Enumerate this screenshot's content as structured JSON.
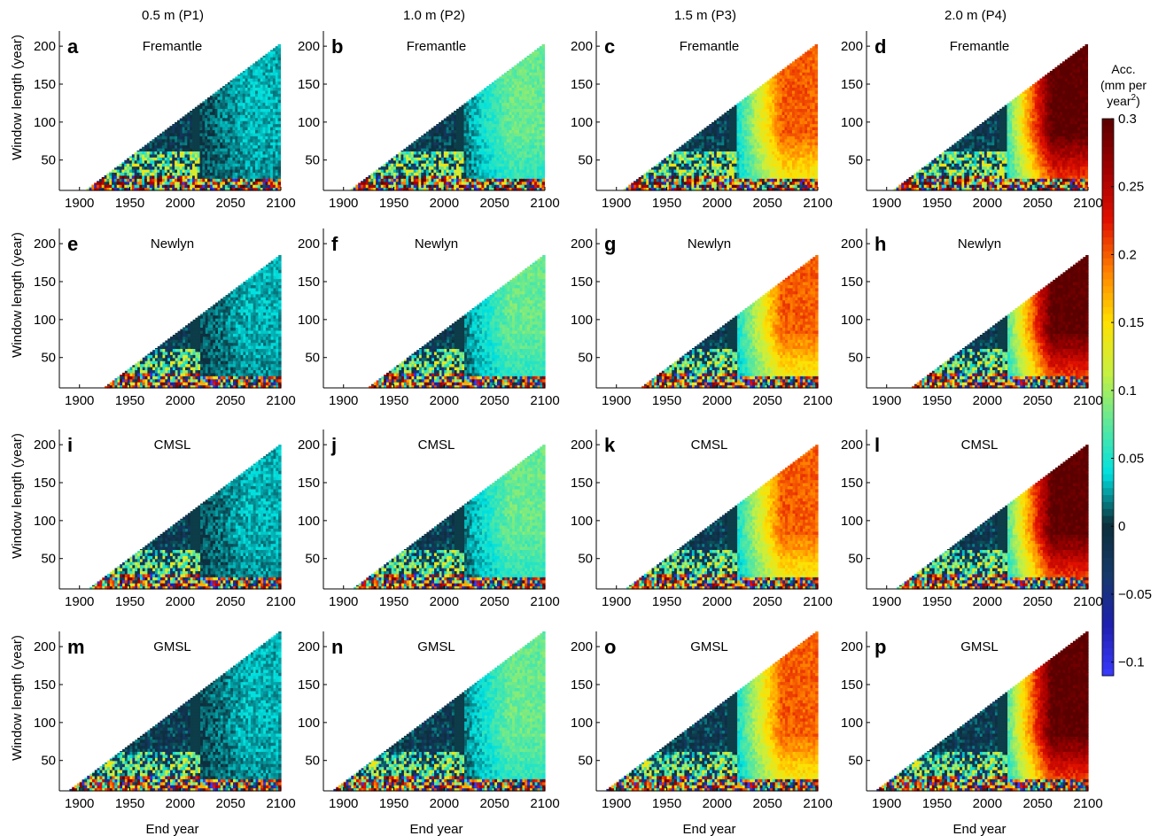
{
  "columns": [
    "0.5 m (P1)",
    "1.0 m (P2)",
    "1.5 m (P3)",
    "2.0 m (P4)"
  ],
  "rows": [
    "Fremantle",
    "Newlyn",
    "CMSL",
    "GMSL"
  ],
  "panel_letters": [
    "a",
    "b",
    "c",
    "d",
    "e",
    "f",
    "g",
    "h",
    "i",
    "j",
    "k",
    "l",
    "m",
    "n",
    "o",
    "p"
  ],
  "axes": {
    "xlabel": "End year",
    "ylabel": "Window length (year)",
    "xticks": [
      1900,
      1950,
      2000,
      2050,
      2100
    ],
    "yticks": [
      50,
      100,
      150,
      200
    ],
    "xlim": [
      1880,
      2100
    ],
    "ylim": [
      10,
      220
    ]
  },
  "colorbar": {
    "title_line1": "Acc.",
    "title_line2": "(mm per",
    "title_line3": "year",
    "title_sup": "2",
    "title_close": ")",
    "ticks": [
      0.3,
      0.25,
      0.2,
      0.15,
      0.1,
      0.05,
      0,
      -0.05,
      -0.1
    ],
    "tick_labels": [
      "0.3",
      "0.25",
      "0.2",
      "0.15",
      "0.1",
      "0.05",
      "0",
      "−0.05",
      "−0.1"
    ],
    "range": [
      -0.11,
      0.3
    ],
    "colors_low_to_high": [
      "#3b3bff",
      "#1f1fb0",
      "#153a6a",
      "#0d2e3a",
      "#00e0e0",
      "#5ee89a",
      "#c8f040",
      "#ffe000",
      "#ff8000",
      "#e01000",
      "#a00000",
      "#5a0000"
    ]
  },
  "chart_data": {
    "type": "heatmap",
    "layout": "4x4 grid of panels",
    "x_variable": "End year",
    "y_variable": "Window length (year)",
    "value_variable": "Acc. (mm per year^2)",
    "start_year_of_records": {
      "Fremantle": 1897,
      "Newlyn": 1915,
      "CMSL": 1900,
      "GMSL": 1880
    },
    "observed_end_year": 2020,
    "late_window_acceleration_by_scenario_mm_per_yr2": {
      "0.5 m (P1)": 0.03,
      "1.0 m (P2)": 0.08,
      "1.5 m (P3)": 0.2,
      "2.0 m (P4)": 0.3
    }
  }
}
